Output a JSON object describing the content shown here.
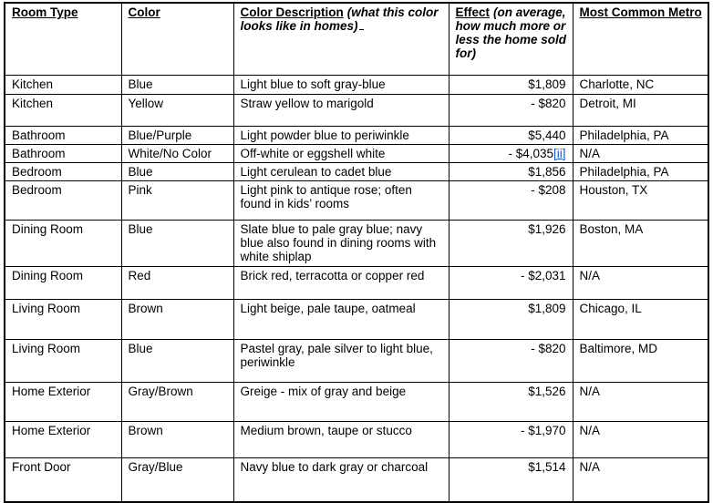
{
  "colors": {
    "border": "#000000",
    "text": "#000000",
    "link_blue": "#1155cc",
    "background": "#ffffff"
  },
  "table": {
    "columns": [
      {
        "key": "room-type",
        "label": "Room Type",
        "note": "",
        "trailing_underline": false
      },
      {
        "key": "color",
        "label": "Color",
        "note": "",
        "trailing_underline": false
      },
      {
        "key": "color-description",
        "label": "Color Description",
        "note": "(what this color looks like in homes)",
        "trailing_underline": true
      },
      {
        "key": "effect",
        "label": "Effect",
        "note": "(on average, how much more or less the home sold for)",
        "trailing_underline": false
      },
      {
        "key": "most-common-metro",
        "label": "Most Common Metro",
        "note": "",
        "trailing_underline": false
      }
    ],
    "rows": [
      {
        "room_type": "Kitchen",
        "color": "Blue",
        "description": "Light blue to soft gray-blue",
        "effect": "$1,809",
        "effect_note": "",
        "metro": "Charlotte, NC"
      },
      {
        "room_type": "Kitchen",
        "color": "Yellow",
        "description": "Straw yellow to marigold",
        "effect": "- $820",
        "effect_note": "",
        "metro": "Detroit, MI"
      },
      {
        "room_type": "Bathroom",
        "color": "Blue/Purple",
        "description": "Light powder blue to periwinkle",
        "effect": "$5,440",
        "effect_note": "",
        "metro": "Philadelphia, PA"
      },
      {
        "room_type": "Bathroom",
        "color": "White/No Color",
        "description": "Off-white or eggshell white",
        "effect": "- $4,035",
        "effect_note": "[ii]",
        "metro": "N/A"
      },
      {
        "room_type": "Bedroom",
        "color": "Blue",
        "description": "Light cerulean to cadet blue",
        "effect": "$1,856",
        "effect_note": "",
        "metro": "Philadelphia, PA"
      },
      {
        "room_type": "Bedroom",
        "color": "Pink",
        "description": "Light pink to antique rose; often found in kids’ rooms",
        "effect": "- $208",
        "effect_note": "",
        "metro": "Houston, TX"
      },
      {
        "room_type": "Dining Room",
        "color": "Blue",
        "description": "Slate blue to pale gray blue; navy blue also found in dining rooms with white shiplap",
        "effect": "$1,926",
        "effect_note": "",
        "metro": "Boston, MA"
      },
      {
        "room_type": "Dining Room",
        "color": "Red",
        "description": "Brick red, terracotta or copper red",
        "effect": "- $2,031",
        "effect_note": "",
        "metro": "N/A"
      },
      {
        "room_type": "Living Room",
        "color": "Brown",
        "description": "Light beige, pale taupe, oatmeal",
        "effect": "$1,809",
        "effect_note": "",
        "metro": "Chicago, IL"
      },
      {
        "room_type": "Living Room",
        "color": "Blue",
        "description": "Pastel gray, pale silver to light blue, periwinkle",
        "effect": "- $820",
        "effect_note": "",
        "metro": "Baltimore, MD"
      },
      {
        "room_type": "Home Exterior",
        "color": "Gray/Brown",
        "description": "Greige - mix of gray and beige",
        "effect": "$1,526",
        "effect_note": "",
        "metro": "N/A"
      },
      {
        "room_type": "Home Exterior",
        "color": "Brown",
        "description": "Medium brown, taupe or stucco",
        "effect": "- $1,970",
        "effect_note": "",
        "metro": "N/A"
      },
      {
        "room_type": "Front Door",
        "color": "Gray/Blue",
        "description": "Navy blue to dark gray or charcoal",
        "effect": "$1,514",
        "effect_note": "",
        "metro": "N/A"
      }
    ]
  }
}
